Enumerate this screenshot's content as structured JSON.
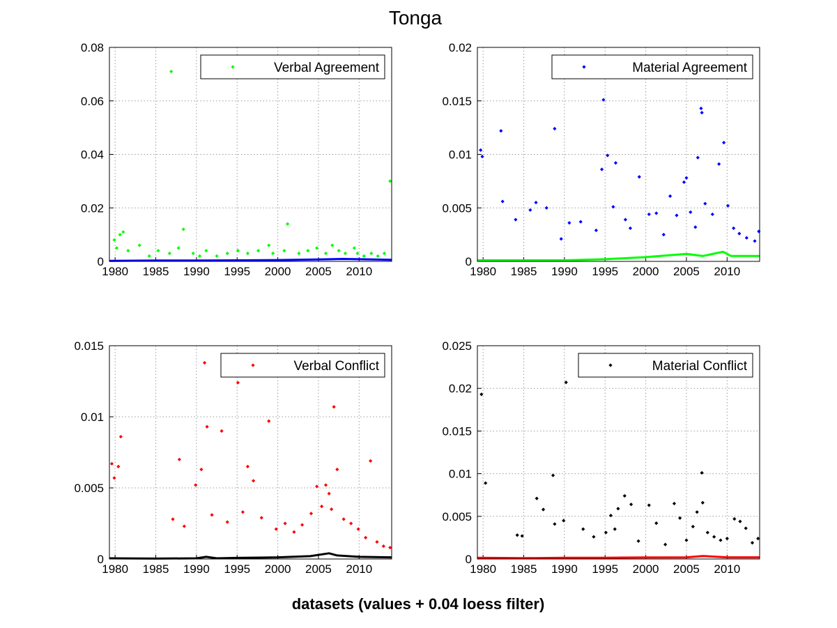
{
  "figure": {
    "title": "Tonga",
    "xlabel": "datasets (values + 0.04 loess filter)"
  },
  "chart_data": [
    {
      "type": "scatter",
      "title": "",
      "xlabel": "",
      "ylabel": "",
      "xlim": [
        1979.3,
        2014.0
      ],
      "ylim": [
        0,
        0.08
      ],
      "xticks": [
        "1980",
        "1985",
        "1990",
        "1995",
        "2000",
        "2005",
        "2010"
      ],
      "yticks": [
        "0",
        "0.02",
        "0.04",
        "0.06",
        "0.08"
      ],
      "grid": true,
      "legend_position": "top-right",
      "series": [
        {
          "name": "Verbal Agreement",
          "marker": "dot",
          "color": "#00ff00",
          "x": [
            1979.9,
            1980.2,
            1980.6,
            1981.0,
            1981.6,
            1983.0,
            1984.2,
            1985.3,
            1986.7,
            1986.9,
            1987.8,
            1988.4,
            1989.6,
            1990.4,
            1991.2,
            1992.5,
            1993.8,
            1995.1,
            1996.3,
            1997.6,
            1998.9,
            1999.4,
            2000.8,
            2001.2,
            2002.6,
            2003.7,
            2004.8,
            2005.9,
            2006.7,
            2007.5,
            2008.3,
            2009.4,
            2009.8,
            2010.6,
            2011.5,
            2012.3,
            2013.1,
            2013.8
          ],
          "y": [
            0.008,
            0.005,
            0.01,
            0.011,
            0.004,
            0.006,
            0.002,
            0.004,
            0.003,
            0.071,
            0.005,
            0.012,
            0.003,
            0.002,
            0.004,
            0.002,
            0.003,
            0.004,
            0.003,
            0.004,
            0.006,
            0.003,
            0.004,
            0.014,
            0.003,
            0.004,
            0.005,
            0.003,
            0.006,
            0.004,
            0.003,
            0.005,
            0.003,
            0.002,
            0.003,
            0.002,
            0.003,
            0.03
          ]
        },
        {
          "name": "",
          "marker": "line",
          "color": "#0000ff",
          "x": [
            1979.3,
            1985,
            1990,
            1995,
            2000,
            2005,
            2008,
            2010,
            2014
          ],
          "y": [
            0.0002,
            0.0003,
            0.0003,
            0.0004,
            0.0005,
            0.0007,
            0.0009,
            0.0008,
            0.0006
          ]
        }
      ]
    },
    {
      "type": "scatter",
      "title": "",
      "xlabel": "",
      "ylabel": "",
      "xlim": [
        1979.3,
        2014.0
      ],
      "ylim": [
        0,
        0.02
      ],
      "xticks": [
        "1980",
        "1985",
        "1990",
        "1995",
        "2000",
        "2005",
        "2010"
      ],
      "yticks": [
        "0",
        "0.005",
        "0.01",
        "0.015",
        "0.02"
      ],
      "grid": true,
      "legend_position": "top-right",
      "series": [
        {
          "name": "Material Agreement",
          "marker": "dot",
          "color": "#0000ff",
          "x": [
            1979.7,
            1979.9,
            1982.2,
            1982.4,
            1984.0,
            1985.8,
            1986.5,
            1987.8,
            1988.8,
            1989.6,
            1990.6,
            1992.0,
            1993.9,
            1994.6,
            1994.8,
            1995.3,
            1996.0,
            1996.3,
            1997.5,
            1998.1,
            1999.2,
            2000.4,
            2001.3,
            2002.2,
            2003.0,
            2003.8,
            2004.7,
            2005.0,
            2005.5,
            2006.1,
            2006.4,
            2006.8,
            2006.9,
            2007.3,
            2008.2,
            2009.0,
            2009.6,
            2010.1,
            2010.8,
            2011.5,
            2012.4,
            2013.4,
            2013.9
          ],
          "y": [
            0.0104,
            0.0098,
            0.0122,
            0.0056,
            0.0039,
            0.0048,
            0.0055,
            0.005,
            0.0124,
            0.0021,
            0.0036,
            0.0037,
            0.0029,
            0.0086,
            0.0151,
            0.0099,
            0.0051,
            0.0092,
            0.0039,
            0.0031,
            0.0079,
            0.0044,
            0.0045,
            0.0025,
            0.0061,
            0.0043,
            0.0074,
            0.0078,
            0.0046,
            0.0032,
            0.0097,
            0.0143,
            0.0139,
            0.0054,
            0.0044,
            0.0091,
            0.0111,
            0.0052,
            0.0031,
            0.0026,
            0.0022,
            0.0019,
            0.0028
          ]
        },
        {
          "name": "",
          "marker": "line",
          "color": "#00ff00",
          "x": [
            1979.3,
            1985,
            1990,
            1995,
            2000,
            2005,
            2007,
            2009.5,
            2010.5,
            2014
          ],
          "y": [
            0.0001,
            0.0001,
            0.0001,
            0.0002,
            0.0004,
            0.0007,
            0.0005,
            0.0009,
            0.0005,
            0.0005
          ]
        }
      ]
    },
    {
      "type": "scatter",
      "title": "",
      "xlabel": "",
      "ylabel": "",
      "xlim": [
        1979.3,
        2014.0
      ],
      "ylim": [
        0,
        0.015
      ],
      "xticks": [
        "1980",
        "1985",
        "1990",
        "1995",
        "2000",
        "2005",
        "2010"
      ],
      "yticks": [
        "0",
        "0.005",
        "0.01",
        "0.015"
      ],
      "grid": true,
      "legend_position": "top-right",
      "series": [
        {
          "name": "Verbal Conflict",
          "marker": "dot",
          "color": "#ff0000",
          "x": [
            1979.6,
            1979.9,
            1980.4,
            1980.7,
            1987.1,
            1987.9,
            1988.5,
            1989.9,
            1990.6,
            1991.0,
            1991.3,
            1991.9,
            1993.1,
            1993.8,
            1995.1,
            1995.7,
            1996.3,
            1997.0,
            1998.0,
            1998.9,
            1999.8,
            2000.9,
            2002.0,
            2003.0,
            2004.1,
            2004.8,
            2005.4,
            2005.9,
            2006.3,
            2006.6,
            2006.9,
            2007.3,
            2008.1,
            2009.0,
            2009.9,
            2010.8,
            2011.4,
            2012.2,
            2013.0,
            2013.8
          ],
          "y": [
            0.0067,
            0.0057,
            0.0065,
            0.0086,
            0.0028,
            0.007,
            0.0023,
            0.0052,
            0.0063,
            0.0138,
            0.0093,
            0.0031,
            0.009,
            0.0026,
            0.0124,
            0.0033,
            0.0065,
            0.0055,
            0.0029,
            0.0097,
            0.0021,
            0.0025,
            0.0019,
            0.0024,
            0.0032,
            0.0051,
            0.0037,
            0.0052,
            0.0046,
            0.0035,
            0.0107,
            0.0063,
            0.0028,
            0.0025,
            0.0021,
            0.0015,
            0.0069,
            0.0012,
            0.0009,
            0.0008
          ]
        },
        {
          "name": "",
          "marker": "line",
          "color": "#000000",
          "x": [
            1979.3,
            1985,
            1990,
            1991.2,
            1992.5,
            1995,
            2000,
            2004,
            2006.3,
            2007.3,
            2010,
            2014
          ],
          "y": [
            5e-05,
            3e-05,
            5e-05,
            0.00015,
            5e-05,
            8e-05,
            0.00012,
            0.0002,
            0.0004,
            0.00025,
            0.00015,
            0.00012
          ]
        }
      ]
    },
    {
      "type": "scatter",
      "title": "",
      "xlabel": "",
      "ylabel": "",
      "xlim": [
        1979.3,
        2014.0
      ],
      "ylim": [
        0,
        0.025
      ],
      "xticks": [
        "1980",
        "1985",
        "1990",
        "1995",
        "2000",
        "2005",
        "2010"
      ],
      "yticks": [
        "0",
        "0.005",
        "0.01",
        "0.015",
        "0.02",
        "0.025"
      ],
      "grid": true,
      "legend_position": "top-right",
      "series": [
        {
          "name": "Material Conflict",
          "marker": "dot",
          "color": "#000000",
          "x": [
            1979.8,
            1980.3,
            1984.2,
            1984.8,
            1986.6,
            1987.4,
            1988.6,
            1988.8,
            1989.9,
            1990.2,
            1992.3,
            1993.6,
            1995.1,
            1995.7,
            1996.2,
            1996.6,
            1997.4,
            1998.2,
            1999.1,
            2000.4,
            2001.3,
            2002.4,
            2003.5,
            2004.2,
            2005.0,
            2005.8,
            2006.3,
            2006.9,
            2007.0,
            2007.6,
            2008.4,
            2009.2,
            2010.0,
            2010.9,
            2011.6,
            2012.3,
            2013.1,
            2013.8
          ],
          "y": [
            0.0193,
            0.0089,
            0.0028,
            0.0027,
            0.0071,
            0.0058,
            0.0098,
            0.0041,
            0.0045,
            0.0207,
            0.0035,
            0.0026,
            0.0031,
            0.0051,
            0.0035,
            0.0059,
            0.0074,
            0.0064,
            0.0021,
            0.0063,
            0.0042,
            0.0017,
            0.0065,
            0.0048,
            0.0022,
            0.0038,
            0.0055,
            0.0101,
            0.0066,
            0.0031,
            0.0026,
            0.0022,
            0.0024,
            0.0047,
            0.0044,
            0.0036,
            0.0019,
            0.0024
          ]
        },
        {
          "name": "",
          "marker": "line",
          "color": "#ff0000",
          "x": [
            1979.3,
            1985,
            1990,
            1995,
            2000,
            2005,
            2007,
            2010,
            2014
          ],
          "y": [
            0.00015,
            0.0001,
            0.00015,
            0.00015,
            0.00018,
            0.0002,
            0.00035,
            0.0002,
            0.0002
          ]
        }
      ]
    }
  ]
}
